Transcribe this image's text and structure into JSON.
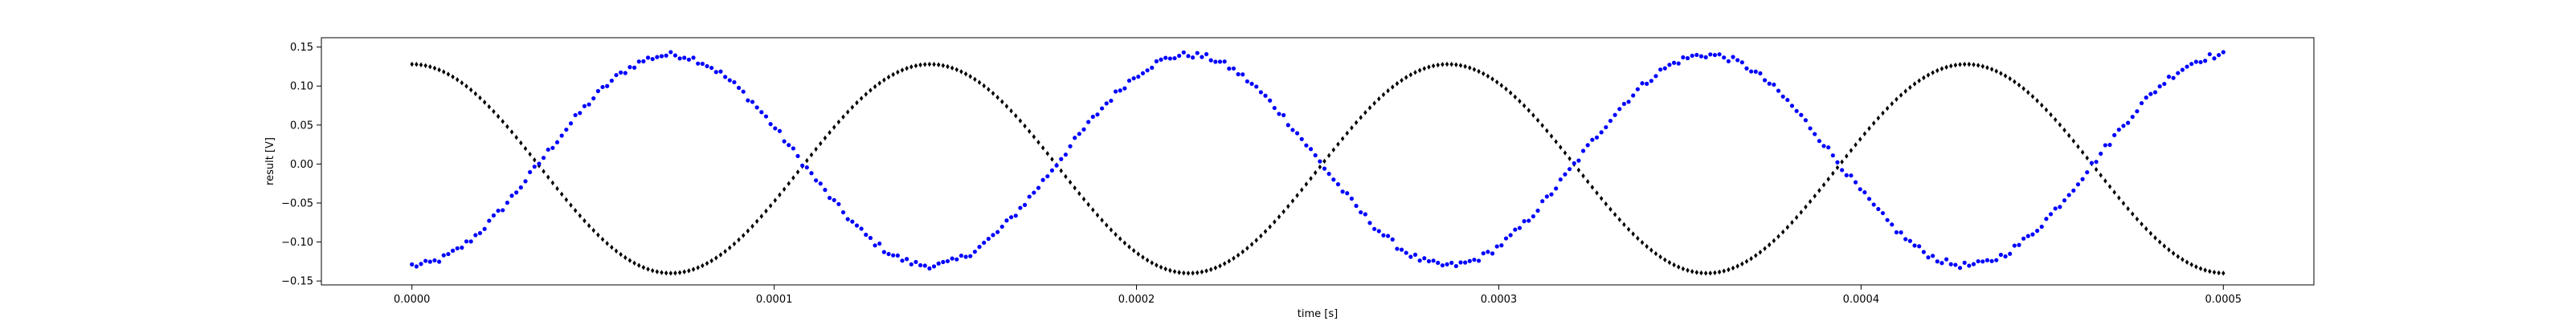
{
  "chart_data": {
    "type": "scatter",
    "title": "",
    "xlabel": "time [s]",
    "ylabel": "result [V]",
    "xlim": [
      -2.5e-05,
      0.000525
    ],
    "ylim": [
      -0.155,
      0.162
    ],
    "xticks": [
      0.0,
      0.0001,
      0.0002,
      0.0003,
      0.0004,
      0.0005
    ],
    "xtick_labels": [
      "0.0000",
      "0.0001",
      "0.0002",
      "0.0003",
      "0.0004",
      "0.0005"
    ],
    "yticks": [
      -0.15,
      -0.1,
      -0.05,
      0.0,
      0.05,
      0.1,
      0.15
    ],
    "ytick_labels": [
      "−0.15",
      "−0.10",
      "−0.05",
      "0.00",
      "0.05",
      "0.10",
      "0.15"
    ],
    "grid": false,
    "legend": "none",
    "series": [
      {
        "color": "#000000",
        "marker": "diamond",
        "count": 400,
        "x_range": [
          0.0,
          0.0005
        ],
        "waveform": "cosine",
        "offset": -0.006,
        "amplitude": 0.134,
        "period": 0.000143,
        "phase_rad": 0.0,
        "noise": 0.0,
        "max_point": [
          0.0,
          0.128
        ],
        "min_point": [
          7.15e-05,
          -0.14
        ]
      },
      {
        "color": "#0000ff",
        "marker": "dot",
        "count": 400,
        "x_range": [
          0.0,
          0.0005
        ],
        "waveform": "cosine",
        "offset": 0.005,
        "amplitude": 0.135,
        "period": 0.000143,
        "phase_rad": 3.14159,
        "noise": 0.004,
        "max_point": [
          7.15e-05,
          0.14
        ],
        "min_point": [
          0.0,
          -0.13
        ]
      }
    ]
  }
}
